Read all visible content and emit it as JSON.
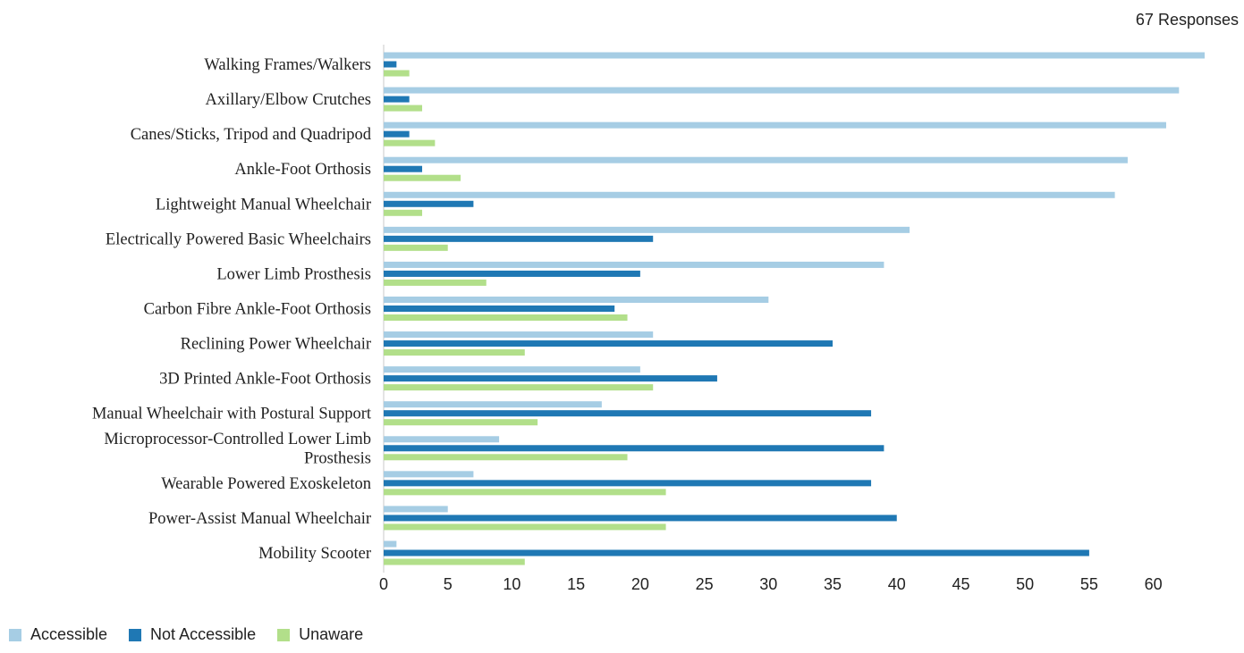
{
  "header": {
    "responses": "67 Responses"
  },
  "colors": {
    "accessible": "#a6cde4",
    "not_accessible": "#1f78b4",
    "unaware": "#b2df8a"
  },
  "chart_data": {
    "type": "bar",
    "orientation": "horizontal",
    "categories": [
      "Walking Frames/Walkers",
      "Axillary/Elbow Crutches",
      "Canes/Sticks, Tripod and Quadripod",
      "Ankle-Foot Orthosis",
      "Lightweight Manual Wheelchair",
      "Electrically Powered Basic Wheelchairs",
      "Lower Limb Prosthesis",
      "Carbon Fibre Ankle-Foot Orthosis",
      "Reclining Power Wheelchair",
      "3D Printed Ankle-Foot Orthosis",
      "Manual Wheelchair with Postural Support",
      "Microprocessor-Controlled Lower Limb Prosthesis",
      "Wearable Powered Exoskeleton",
      "Power-Assist Manual Wheelchair",
      "Mobility Scooter"
    ],
    "series": [
      {
        "name": "Accessible",
        "color": "#a6cde4",
        "values": [
          64,
          62,
          61,
          58,
          57,
          41,
          39,
          30,
          21,
          20,
          17,
          9,
          7,
          5,
          1
        ]
      },
      {
        "name": "Not Accessible",
        "color": "#1f78b4",
        "values": [
          1,
          2,
          2,
          3,
          7,
          21,
          20,
          18,
          35,
          26,
          38,
          39,
          38,
          40,
          55
        ]
      },
      {
        "name": "Unaware",
        "color": "#b2df8a",
        "values": [
          2,
          3,
          4,
          6,
          3,
          5,
          8,
          19,
          11,
          21,
          12,
          19,
          22,
          22,
          11
        ]
      }
    ],
    "xlim": [
      0,
      64
    ],
    "xticks": [
      0,
      5,
      10,
      15,
      20,
      25,
      30,
      35,
      40,
      45,
      50,
      55,
      60
    ],
    "grid": false,
    "legend_position": "bottom-left"
  }
}
